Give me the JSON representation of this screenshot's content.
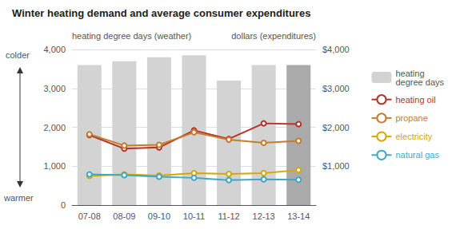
{
  "chart_data": {
    "type": "bar",
    "title": "Winter heating demand and average consumer expenditures",
    "ylabel": "heating degree days (weather)",
    "y2label": "dollars (expenditures)",
    "annotations": [
      "colder",
      "warmer"
    ],
    "categories": [
      "07-08",
      "08-09",
      "09-10",
      "10-11",
      "11-12",
      "12-13",
      "13-14"
    ],
    "series": [
      {
        "name": "heating\ndegree days",
        "type": "bar",
        "colors": [
          "#d3d3d3",
          "#d3d3d3",
          "#d3d3d3",
          "#d3d3d3",
          "#d3d3d3",
          "#d3d3d3",
          "#aaaaaa"
        ],
        "values": [
          3600,
          3700,
          3800,
          3850,
          3200,
          3600,
          3600
        ]
      },
      {
        "name": "heating oil",
        "type": "line",
        "axis": "y2",
        "color": "#b5322a",
        "values": [
          1800,
          1450,
          1480,
          1920,
          1700,
          2100,
          2080
        ]
      },
      {
        "name": "propane",
        "type": "line",
        "axis": "y2",
        "color": "#c47d2a",
        "values": [
          1820,
          1530,
          1550,
          1870,
          1680,
          1600,
          1650
        ]
      },
      {
        "name": "electricity",
        "type": "line",
        "axis": "y2",
        "color": "#d4a800",
        "values": [
          750,
          790,
          760,
          820,
          800,
          820,
          900
        ]
      },
      {
        "name": "natural gas",
        "type": "line",
        "axis": "y2",
        "color": "#3fa8c8",
        "values": [
          790,
          770,
          730,
          700,
          640,
          660,
          650
        ]
      }
    ],
    "ylim": [
      0,
      4000
    ],
    "yticks": [
      0,
      {
        "value": 1000,
        "label": "1,000"
      },
      {
        "value": 2000,
        "label": "2,000"
      },
      {
        "value": 3000,
        "label": "3,000"
      },
      {
        "value": 4000,
        "label": "4,000"
      }
    ],
    "y2lim": [
      0,
      4000
    ],
    "y2ticks": [
      {
        "value": 1000,
        "label": "$1,000"
      },
      {
        "value": 2000,
        "label": "$2,000"
      },
      {
        "value": 3000,
        "label": "$3,000"
      },
      {
        "value": 4000,
        "label": "$4,000"
      }
    ],
    "grid": true,
    "legend": "right"
  }
}
